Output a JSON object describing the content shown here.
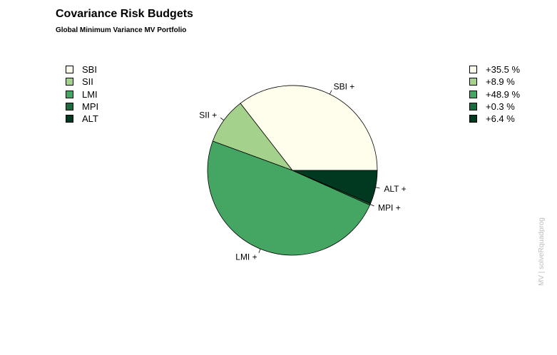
{
  "title": "Covariance Risk Budgets",
  "subtitle": "Global Minimum Variance MV Portfolio",
  "side_note": "MV | solveRquadprog",
  "colors": [
    "#fffdeb",
    "#a4d18c",
    "#45a664",
    "#1c6b3e",
    "#00391f"
  ],
  "chart_data": {
    "type": "pie",
    "title": "Covariance Risk Budgets",
    "subtitle": "Global Minimum Variance MV Portfolio",
    "labels": [
      "SBI",
      "SII",
      "LMI",
      "MPI",
      "ALT"
    ],
    "slice_labels": [
      "SBI +",
      "SII +",
      "LMI +",
      "MPI +",
      "ALT +"
    ],
    "values": [
      35.5,
      8.9,
      48.9,
      0.3,
      6.4
    ],
    "value_labels": [
      "+35.5 %",
      "+8.9 %",
      "+48.9 %",
      "+0.3 %",
      "+6.4 %"
    ],
    "start_angle_deg": 0,
    "direction": "counterclockwise",
    "legend_left": "top-left",
    "legend_right": "top-right"
  }
}
